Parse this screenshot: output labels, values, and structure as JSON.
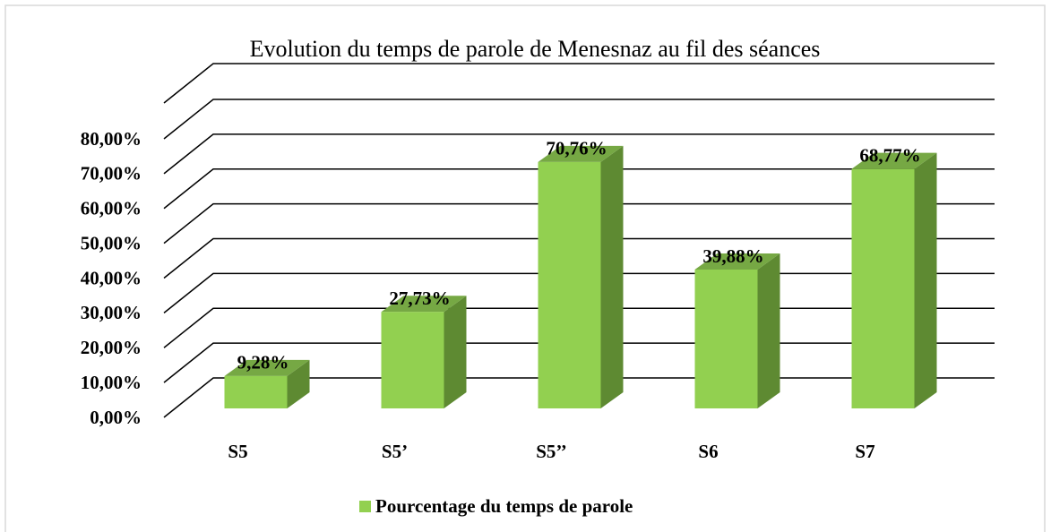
{
  "chart_data": {
    "type": "bar3d",
    "title": "Evolution du temps de parole de Menesnaz au fil des séances",
    "categories": [
      "S5",
      "S5’",
      "S5’’",
      "S6",
      "S7"
    ],
    "series": [
      {
        "name": "Pourcentage du temps de parole",
        "color": "#92d050",
        "values": [
          9.28,
          27.73,
          70.76,
          39.88,
          68.77
        ],
        "value_labels": [
          "9,28%",
          "27,73%",
          "70,76%",
          "39,88%",
          "68,77%"
        ]
      }
    ],
    "ylim": [
      0,
      80
    ],
    "yticks": [
      {
        "value": 0,
        "label": "0,00%"
      },
      {
        "value": 10,
        "label": "10,00%"
      },
      {
        "value": 20,
        "label": "20,00%"
      },
      {
        "value": 30,
        "label": "30,00%"
      },
      {
        "value": 40,
        "label": "40,00%"
      },
      {
        "value": 50,
        "label": "50,00%"
      },
      {
        "value": 60,
        "label": "60,00%"
      },
      {
        "value": 70,
        "label": "70,00%"
      },
      {
        "value": 80,
        "label": "80,00%"
      }
    ],
    "grid": true,
    "legend": "bottom"
  }
}
